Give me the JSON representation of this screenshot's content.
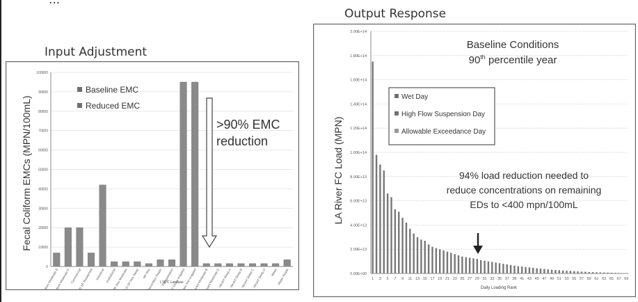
{
  "header_partial": "...",
  "left_panel": {
    "title": "Input Adjustment"
  },
  "right_panel": {
    "title": "Output Response"
  },
  "chart_data": [
    {
      "type": "bar",
      "ylabel": "Fecal Coliform EMCs (MPN/100mL)",
      "xlabel": "LSPC Landuse",
      "ylim": [
        0,
        100000
      ],
      "yticks": [
        "0",
        "10000",
        "20000",
        "30000",
        "40000",
        "50000",
        "60000",
        "70000",
        "80000",
        "90000",
        "100000"
      ],
      "legend": [
        "Baseline EMC",
        "Reduced EMC"
      ],
      "legend_placement": "top-left",
      "categories": [
        "Agriculture Moderate B",
        "Agriculture Moderate D",
        "Commercial",
        "HD SF Residential",
        "Industrial",
        "Institutional",
        "LD SF Res Moderate",
        "LD SF Res Steep",
        "MF Res",
        "Secondary Roads",
        "Transportation",
        "Urban Grass Irrigated",
        "Urban Grass Non-irrigated",
        "Vacant Moderate B",
        "Vacant Moderate D",
        "Vacant Steep A",
        "Vacant Steep B",
        "Vacant Steep C",
        "Vacant Steep D",
        "Water",
        "Water Roads"
      ],
      "series": [
        {
          "name": "Baseline EMC",
          "values": [
            7000,
            20000,
            20000,
            7000,
            42000,
            2500,
            2500,
            2500,
            1500,
            3500,
            3500,
            95000,
            95000,
            1500,
            1500,
            1500,
            1500,
            1500,
            1500,
            1500,
            3500
          ]
        }
      ],
      "annotation": ">90% EMC\nreduction",
      "colors": {
        "bar": "#8a8a8a",
        "legend_swatch": "#6f6f6f"
      }
    },
    {
      "type": "bar",
      "ylabel": "LA River FC Load (MPN)",
      "xlabel": "Daily Loading Rank",
      "ylim": [
        0,
        200000000000000.0
      ],
      "yticks": [
        "0.00E+00",
        "2.00E+13",
        "4.00E+13",
        "6.00E+13",
        "8.00E+13",
        "1.00E+14",
        "1.20E+14",
        "1.40E+14",
        "1.60E+14",
        "1.80E+14",
        "2.00E+14"
      ],
      "xtick_labels": [
        "1",
        "3",
        "5",
        "7",
        "9",
        "11",
        "13",
        "15",
        "17",
        "19",
        "21",
        "23",
        "25",
        "27",
        "29",
        "31",
        "33",
        "35",
        "37",
        "39",
        "41",
        "43",
        "45",
        "47",
        "49",
        "51",
        "53",
        "55",
        "57",
        "59",
        "61",
        "63",
        "65",
        "67",
        "69"
      ],
      "legend": [
        "Wet Day",
        "High Flow Suspension Day",
        "Allowable Exceedance Day"
      ],
      "legend_placement": "top-left",
      "chart_title_lines": [
        "Baseline Conditions",
        "90th percentile year"
      ],
      "annotation": "94% load reduction needed to\nreduce concentrations on remaining\nEDs to <400 mpn/100mL",
      "values": [
        175000000000000.0,
        98000000000000.0,
        90000000000000.0,
        85000000000000.0,
        66000000000000.0,
        63000000000000.0,
        53000000000000.0,
        51000000000000.0,
        46000000000000.0,
        42000000000000.0,
        37000000000000.0,
        33000000000000.0,
        30000000000000.0,
        28000000000000.0,
        27000000000000.0,
        24000000000000.0,
        22000000000000.0,
        21000000000000.0,
        20000000000000.0,
        19000000000000.0,
        18000000000000.0,
        17000000000000.0,
        16000000000000.0,
        15000000000000.0,
        14000000000000.0,
        13500000000000.0,
        13000000000000.0,
        12500000000000.0,
        12000000000000.0,
        11000000000000.0,
        10500000000000.0,
        10000000000000.0,
        9500000000000.0,
        9000000000000.0,
        8500000000000.0,
        8000000000000.0,
        7500000000000.0,
        7000000000000.0,
        6500000000000.0,
        6000000000000.0,
        5700000000000.0,
        5300000000000.0,
        5000000000000.0,
        4700000000000.0,
        4300000000000.0,
        4000000000000.0,
        3700000000000.0,
        3400000000000.0,
        3100000000000.0,
        2900000000000.0,
        2700000000000.0,
        2500000000000.0,
        2300000000000.0,
        2100000000000.0,
        1900000000000.0,
        1700000000000.0,
        1500000000000.0,
        1400000000000.0,
        1200000000000.0,
        1100000000000.0,
        1000000000000.0,
        900000000000.0,
        800000000000.0,
        700000000000.0,
        600000000000.0,
        500000000000.0,
        400000000000.0,
        300000000000.0,
        200000000000.0
      ],
      "colors": {
        "bar": "#777777",
        "legend_swatch": "#6f6f6f",
        "gridline": "#bfbfbf"
      }
    }
  ]
}
